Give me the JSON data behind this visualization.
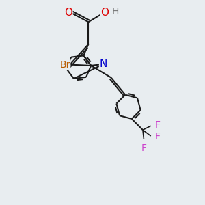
{
  "bg_color": "#e8edf0",
  "bond_color": "#1a1a1a",
  "bond_width": 1.5,
  "atom_colors": {
    "O": "#dd0000",
    "N": "#0000cc",
    "Br": "#b85c00",
    "F": "#cc44cc",
    "H": "#777777",
    "C": "#1a1a1a"
  },
  "font_size": 9.5,
  "figsize": [
    3.0,
    3.0
  ],
  "dpi": 100
}
